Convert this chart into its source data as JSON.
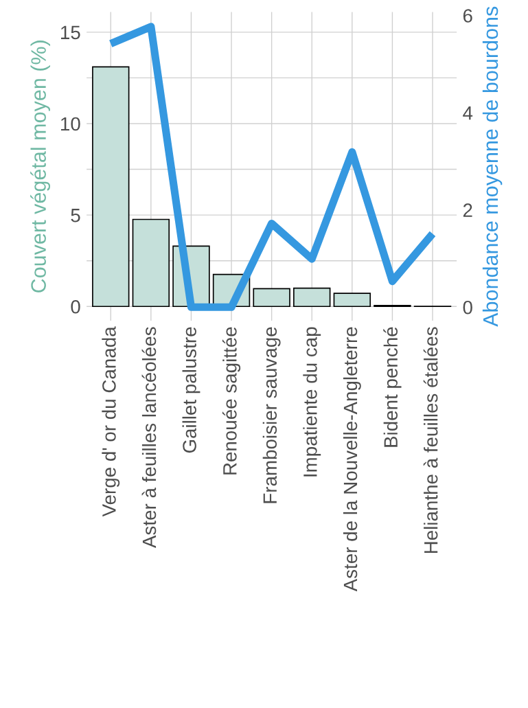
{
  "chart_data": {
    "type": "bar",
    "categories": [
      "Verge d' or du Canada",
      "Aster à feuilles lancéolées",
      "Gaillet palustre",
      "Renouée sagittée",
      "Framboisier sauvage",
      "Impatiente du cap",
      "Aster de la Nouvelle-Angleterre",
      "Bident penché",
      "Helianthe à feuilles étalées"
    ],
    "series": [
      {
        "color": "#c5e0da",
        "values": [
          13.1,
          4.76,
          3.3,
          1.75,
          0.97,
          1.0,
          0.72,
          0.05,
          0.01
        ]
      },
      {
        "type": "line",
        "axis": "y2",
        "color": "#3598e0",
        "values": [
          5.42,
          5.77,
          0,
          0,
          1.72,
          0.99,
          3.19,
          0.53,
          1.51
        ]
      }
    ],
    "ylabel": "Couvert végétal moyen (%)",
    "y2label": "Abondance moyenne de bourdons",
    "ylim": [
      -0.78,
      16.1
    ],
    "yticks": [
      0,
      {
        "value": 2.5,
        "label": null
      },
      5,
      {
        "value": 7.5,
        "label": null
      },
      10,
      {
        "value": 12.5,
        "label": null
      },
      15
    ],
    "y2lim": [
      -0.28,
      6.07
    ],
    "y2ticks": [
      0,
      2,
      4,
      6
    ],
    "grid": true
  }
}
